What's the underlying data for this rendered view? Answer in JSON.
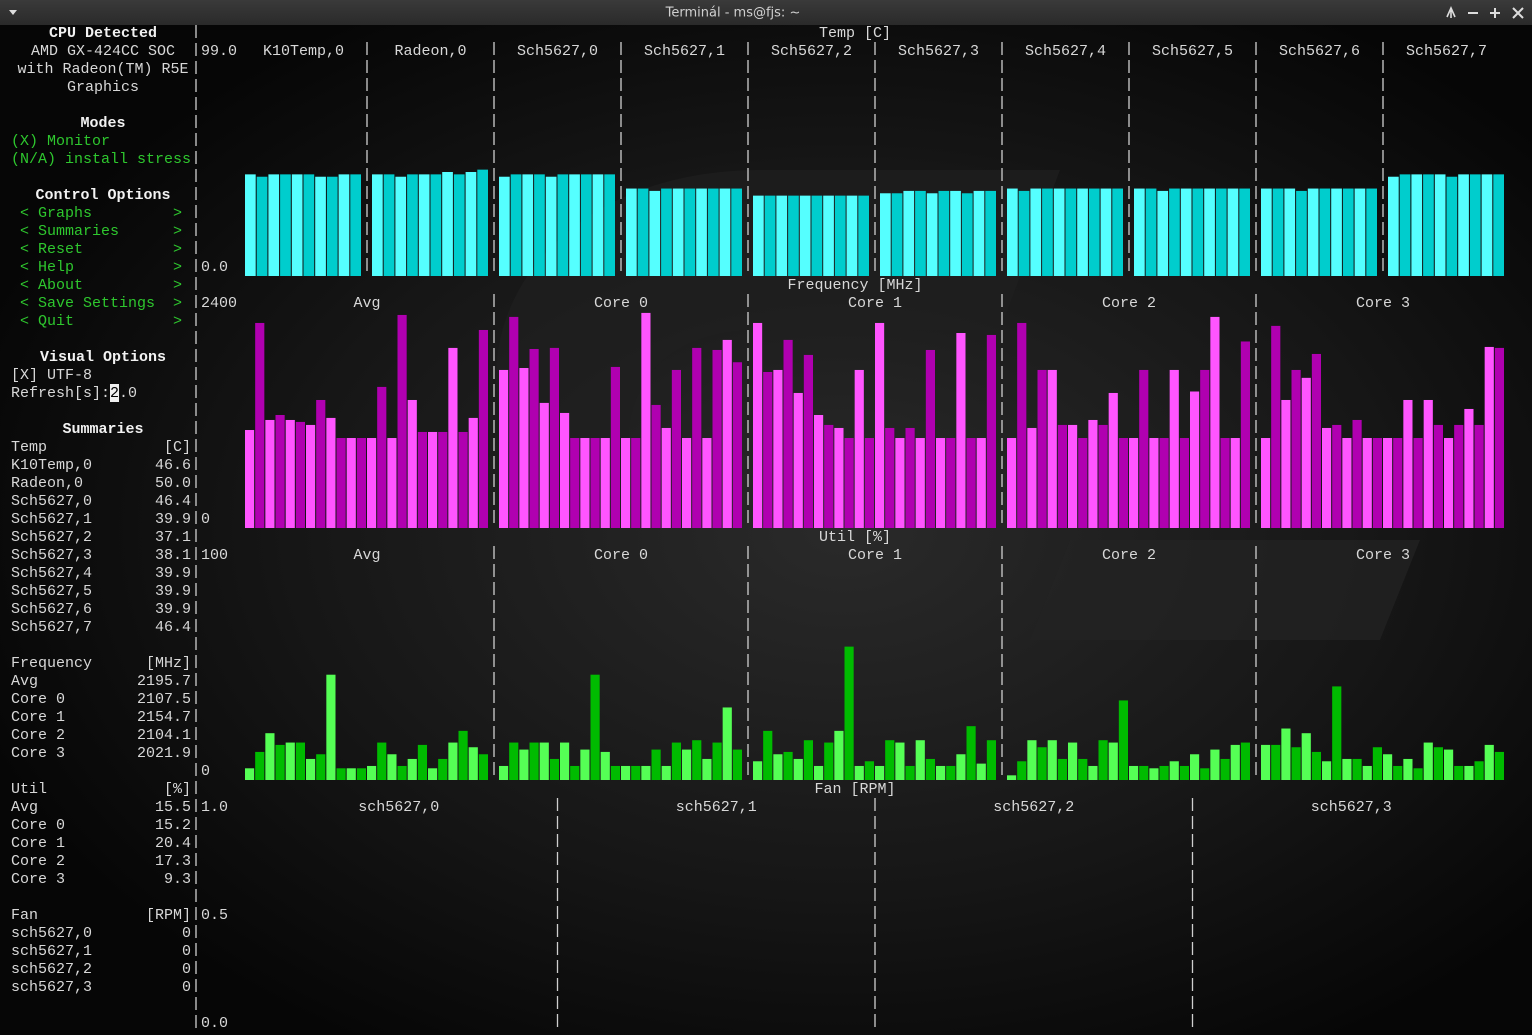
{
  "window": {
    "title": "Terminál - ms@fjs: ~"
  },
  "sidebar": {
    "cpu_title": "CPU Detected",
    "cpu_name": [
      "AMD GX-424CC SOC",
      "with Radeon(TM) R5E",
      "Graphics"
    ],
    "modes_title": "Modes",
    "modes": [
      "(X) Monitor",
      "(N/A) install stress"
    ],
    "control_title": "Control Options",
    "arrow_left": "<",
    "arrow_right": ">",
    "controls": [
      "Graphs",
      "Summaries",
      "Reset",
      "Help",
      "About",
      "Save Settings",
      "Quit"
    ],
    "visual_title": "Visual Options",
    "utf8": "[X] UTF-8",
    "refresh_label": "Refresh[s]:",
    "refresh_value": "2.0",
    "summaries_title": "Summaries",
    "summaries": [
      {
        "name": "Temp",
        "unit": "[C]",
        "row": 23,
        "items": [
          {
            "name": "K10Temp,0",
            "value": 46.6
          },
          {
            "name": "Radeon,0",
            "value": {
              "value": 50,
              "label": "50.0"
            }
          },
          {
            "name": "Sch5627,0",
            "value": 46.4
          },
          {
            "name": "Sch5627,1",
            "value": 39.9
          },
          {
            "name": "Sch5627,2",
            "value": 37.1
          },
          {
            "name": "Sch5627,3",
            "value": 38.1
          },
          {
            "name": "Sch5627,4",
            "value": 39.9
          },
          {
            "name": "Sch5627,5",
            "value": 39.9
          },
          {
            "name": "Sch5627,6",
            "value": 39.9
          },
          {
            "name": "Sch5627,7",
            "value": 46.4
          }
        ]
      },
      {
        "name": "Frequency",
        "unit": "[MHz]",
        "row": 35,
        "items": [
          {
            "name": "Avg",
            "value": 2195.7
          },
          {
            "name": "Core 0",
            "value": 2107.5
          },
          {
            "name": "Core 1",
            "value": 2154.7
          },
          {
            "name": "Core 2",
            "value": 2104.1
          },
          {
            "name": "Core 3",
            "value": 2021.9
          }
        ]
      },
      {
        "name": "Util",
        "unit": "[%]",
        "row": 42,
        "items": [
          {
            "name": "Avg",
            "value": 15.5
          },
          {
            "name": "Core 0",
            "value": 15.2
          },
          {
            "name": "Core 1",
            "value": 20.4
          },
          {
            "name": "Core 2",
            "value": 17.3
          },
          {
            "name": "Core 3",
            "value": 9.3
          }
        ]
      },
      {
        "name": "Fan",
        "unit": "[RPM]",
        "row": 49,
        "items": [
          {
            "name": "sch5627,0",
            "value": 0
          },
          {
            "name": "sch5627,1",
            "value": 0
          },
          {
            "name": "sch5627,2",
            "value": 0
          },
          {
            "name": "sch5627,3",
            "value": 0
          }
        ]
      }
    ]
  },
  "graphs": [
    {
      "type": "bar",
      "title": "Temp [C]",
      "row": 0,
      "colors": [
        "#55ffff",
        "#00cdcd"
      ],
      "ylim": [
        0,
        99
      ],
      "yticks": [
        {
          "value": 99,
          "label": "99.0"
        },
        {
          "value": 0,
          "label": "0.0"
        }
      ],
      "panels": [
        {
          "name": "K10Temp,0",
          "values": [
            43,
            42,
            43,
            43,
            43,
            43,
            42,
            42,
            43,
            43
          ]
        },
        {
          "name": "Radeon,0",
          "values": [
            43,
            43,
            42,
            43,
            43,
            43,
            44,
            43,
            44,
            45
          ]
        },
        {
          "name": "Sch5627,0",
          "values": [
            42,
            43,
            43,
            43,
            42,
            43,
            43,
            43,
            43,
            43
          ]
        },
        {
          "name": "Sch5627,1",
          "values": [
            37,
            37,
            36,
            37,
            37,
            37,
            37,
            37,
            37,
            37
          ]
        },
        {
          "name": "Sch5627,2",
          "values": [
            34,
            34,
            34,
            34,
            34,
            34,
            34,
            34,
            34,
            34
          ]
        },
        {
          "name": "Sch5627,3",
          "values": [
            35,
            35,
            36,
            36,
            35,
            36,
            36,
            35,
            36,
            36
          ]
        },
        {
          "name": "Sch5627,4",
          "values": [
            37,
            36,
            37,
            37,
            37,
            37,
            37,
            37,
            37,
            37
          ]
        },
        {
          "name": "Sch5627,5",
          "values": [
            37,
            37,
            36,
            37,
            37,
            37,
            37,
            37,
            37,
            37
          ]
        },
        {
          "name": "Sch5627,6",
          "values": [
            37,
            37,
            37,
            36,
            37,
            37,
            37,
            37,
            37,
            37
          ]
        },
        {
          "name": "Sch5627,7",
          "values": [
            42,
            43,
            43,
            43,
            43,
            42,
            43,
            43,
            43,
            43
          ]
        }
      ]
    },
    {
      "type": "bar",
      "title": "Frequency [MHz]",
      "row": 14,
      "colors": [
        "#ff55ff",
        "#b000b0"
      ],
      "ylim": [
        0,
        2400
      ],
      "yticks": [
        2400,
        0
      ],
      "panels": [
        {
          "name": "Avg",
          "values": [
            1005,
            2103,
            1108,
            1159,
            1108,
            1088,
            1057,
            1313,
            1129,
            923,
            923,
            923,
            923,
            1447,
            923,
            2185,
            1313,
            985,
            985,
            985,
            1847,
            985,
            1129,
            2031
          ]
        },
        {
          "name": "Core 0",
          "values": [
            1621,
            2165,
            1641,
            1836,
            1283,
            1847,
            1180,
            923,
            923,
            923,
            923,
            1652,
            923,
            923,
            2206,
            1262,
            1026,
            1621,
            923,
            1847,
            923,
            1826,
            1929,
            1700
          ]
        },
        {
          "name": "Core 1",
          "values": [
            2103,
            1600,
            1621,
            1929,
            1385,
            1775,
            1159,
            1057,
            1026,
            923,
            1621,
            923,
            2103,
            1026,
            923,
            1026,
            923,
            1826,
            923,
            923,
            2000,
            923,
            923,
            1980
          ]
        },
        {
          "name": "Core 2",
          "values": [
            923,
            2103,
            1026,
            1621,
            1621,
            1057,
            1057,
            923,
            1108,
            1057,
            1385,
            923,
            923,
            1621,
            923,
            923,
            1621,
            923,
            1400,
            1621,
            2165,
            923,
            923,
            1913
          ]
        },
        {
          "name": "Core 3",
          "values": [
            923,
            2073,
            1313,
            1621,
            1540,
            1785,
            1026,
            1057,
            923,
            1108,
            923,
            923,
            923,
            923,
            1313,
            923,
            1313,
            1057,
            923,
            1057,
            1221,
            1057,
            1857,
            1847
          ]
        }
      ]
    },
    {
      "type": "bar",
      "title": "Util [%]",
      "row": 28,
      "colors": [
        "#55ff55",
        "#00bb00"
      ],
      "ylim": [
        0,
        100
      ],
      "yticks": [
        100,
        0
      ],
      "panels": [
        {
          "name": "Avg",
          "values": [
            5,
            12,
            20,
            15,
            16,
            16,
            9,
            11,
            45,
            5,
            5,
            5,
            6,
            16,
            11,
            6,
            9,
            15,
            5,
            9,
            16,
            21,
            14,
            11
          ]
        },
        {
          "name": "Core 0",
          "values": [
            6,
            16,
            13,
            16,
            16,
            9,
            16,
            6,
            13,
            45,
            12,
            6,
            6,
            6,
            6,
            13,
            6,
            16,
            13,
            17,
            9,
            16,
            31,
            13
          ]
        },
        {
          "name": "Core 1",
          "values": [
            8,
            21,
            11,
            12,
            9,
            17,
            6,
            16,
            21,
            57,
            6,
            8,
            6,
            17,
            16,
            6,
            17,
            9,
            6,
            6,
            11,
            23,
            7,
            17
          ]
        },
        {
          "name": "Core 2",
          "values": [
            2,
            8,
            17,
            14,
            17,
            9,
            16,
            9,
            6,
            17,
            16,
            34,
            6,
            6,
            5,
            6,
            8,
            6,
            11,
            5,
            13,
            9,
            15,
            16
          ]
        },
        {
          "name": "Core 3",
          "values": [
            15,
            15,
            22,
            14,
            20,
            12,
            8,
            40,
            9,
            9,
            6,
            14,
            11,
            6,
            9,
            5,
            16,
            14,
            13,
            6,
            6,
            8,
            15,
            12
          ]
        }
      ]
    },
    {
      "type": "bar",
      "title": "Fan [RPM]",
      "row": 42,
      "colors": [
        "#55ffff",
        "#00cdcd"
      ],
      "ylim": [
        0,
        1
      ],
      "yticks": [
        {
          "value": 1,
          "label": "1.0"
        },
        {
          "value": 0.5,
          "label": "0.5"
        },
        {
          "value": 0,
          "label": "0.0"
        }
      ],
      "panels": [
        {
          "name": "sch5627,0"
        },
        {
          "name": "sch5627,1"
        },
        {
          "name": "sch5627,2"
        },
        {
          "name": "sch5627,3"
        }
      ]
    }
  ]
}
